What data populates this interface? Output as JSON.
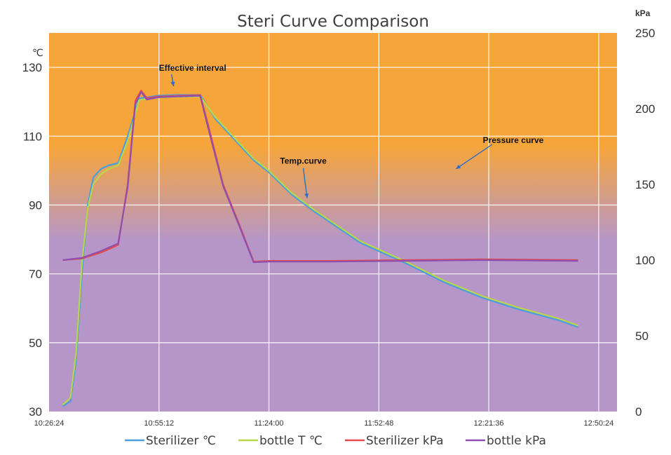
{
  "chart_data": {
    "type": "line",
    "title": "Steri Curve Comparison",
    "x": [
      "10:26:24",
      "10:55:12",
      "11:24:00",
      "11:52:48",
      "12:21:36",
      "12:50:24"
    ],
    "x_tick_labels": [
      "10:26:24",
      "10:55:12",
      "11:24:00",
      "11:52:48",
      "12:21:36",
      "12:50:24"
    ],
    "xlim": [
      "10:26:24",
      "12:55:12"
    ],
    "y_left": {
      "unit_label": "℃",
      "ylim": [
        30,
        140
      ],
      "ticks": [
        30,
        50,
        70,
        90,
        110,
        130
      ]
    },
    "y_right": {
      "unit_label": "kPa",
      "ylim": [
        0,
        250
      ],
      "ticks": [
        0,
        50,
        100,
        150,
        200,
        250
      ]
    },
    "grid": true,
    "legend_position": "bottom",
    "background": {
      "top_color": "#f6a53b",
      "bottom_color": "#b696c9"
    },
    "series": [
      {
        "name": "Sterilizer ℃",
        "axis": "left",
        "color": "#4a9ede",
        "points": [
          [
            "10:30:00",
            31.5
          ],
          [
            "10:32:00",
            33
          ],
          [
            "10:33:30",
            45
          ],
          [
            "10:35:00",
            70
          ],
          [
            "10:36:30",
            90
          ],
          [
            "10:38:00",
            98
          ],
          [
            "10:40:00",
            100.5
          ],
          [
            "10:42:00",
            101.5
          ],
          [
            "10:44:30",
            102.2
          ],
          [
            "10:47:00",
            110
          ],
          [
            "10:50:00",
            121
          ],
          [
            "10:55:00",
            121.8
          ],
          [
            "11:00:00",
            122
          ],
          [
            "11:06:00",
            122
          ],
          [
            "11:10:00",
            115
          ],
          [
            "11:15:00",
            109
          ],
          [
            "11:20:00",
            103
          ],
          [
            "11:24:00",
            99.5
          ],
          [
            "11:30:00",
            93
          ],
          [
            "11:36:00",
            88
          ],
          [
            "11:42:00",
            83.5
          ],
          [
            "11:48:00",
            79
          ],
          [
            "11:55:00",
            75.5
          ],
          [
            "12:00:00",
            73
          ],
          [
            "12:10:00",
            67.5
          ],
          [
            "12:20:00",
            63
          ],
          [
            "12:30:00",
            59.5
          ],
          [
            "12:40:00",
            56.5
          ],
          [
            "12:45:00",
            54.5
          ]
        ]
      },
      {
        "name": "bottle T ℃",
        "axis": "left",
        "color": "#b9d64a",
        "points": [
          [
            "10:30:00",
            32
          ],
          [
            "10:32:00",
            34
          ],
          [
            "10:33:30",
            47
          ],
          [
            "10:35:00",
            73
          ],
          [
            "10:36:30",
            89
          ],
          [
            "10:38:00",
            96
          ],
          [
            "10:40:00",
            99
          ],
          [
            "10:42:00",
            100.5
          ],
          [
            "10:44:30",
            101.5
          ],
          [
            "10:47:00",
            108.5
          ],
          [
            "10:50:00",
            120.5
          ],
          [
            "10:55:00",
            121.2
          ],
          [
            "11:00:00",
            121.4
          ],
          [
            "11:06:00",
            121.5
          ],
          [
            "11:10:00",
            115.5
          ],
          [
            "11:15:00",
            109.5
          ],
          [
            "11:20:00",
            103.5
          ],
          [
            "11:24:00",
            100
          ],
          [
            "11:30:00",
            93.5
          ],
          [
            "11:36:00",
            88.5
          ],
          [
            "11:42:00",
            84
          ],
          [
            "11:48:00",
            79.5
          ],
          [
            "11:55:00",
            76
          ],
          [
            "12:00:00",
            73.5
          ],
          [
            "12:10:00",
            68
          ],
          [
            "12:20:00",
            63.5
          ],
          [
            "12:30:00",
            60
          ],
          [
            "12:40:00",
            57
          ],
          [
            "12:45:00",
            55
          ]
        ]
      },
      {
        "name": "Sterilizer kPa",
        "axis": "right",
        "color": "#e24a4a",
        "points": [
          [
            "10:30:00",
            100
          ],
          [
            "10:35:00",
            101
          ],
          [
            "10:40:00",
            105
          ],
          [
            "10:44:30",
            110
          ],
          [
            "10:47:00",
            150
          ],
          [
            "10:49:00",
            205
          ],
          [
            "10:50:30",
            212
          ],
          [
            "10:52:00",
            207
          ],
          [
            "10:55:00",
            208
          ],
          [
            "11:00:00",
            208.5
          ],
          [
            "11:06:00",
            209
          ],
          [
            "11:08:00",
            190
          ],
          [
            "11:12:00",
            150
          ],
          [
            "11:16:00",
            125
          ],
          [
            "11:20:00",
            99
          ],
          [
            "11:24:00",
            99.5
          ],
          [
            "11:40:00",
            99.5
          ],
          [
            "12:00:00",
            100
          ],
          [
            "12:20:00",
            100.5
          ],
          [
            "12:45:00",
            100
          ]
        ]
      },
      {
        "name": "bottle kPa",
        "axis": "right",
        "color": "#8e4fb0",
        "points": [
          [
            "10:30:00",
            100
          ],
          [
            "10:35:00",
            101.5
          ],
          [
            "10:40:00",
            106
          ],
          [
            "10:44:30",
            111
          ],
          [
            "10:47:00",
            148
          ],
          [
            "10:49:00",
            203
          ],
          [
            "10:50:30",
            211
          ],
          [
            "10:52:00",
            206
          ],
          [
            "10:55:00",
            207.5
          ],
          [
            "11:00:00",
            208
          ],
          [
            "11:06:00",
            208.5
          ],
          [
            "11:08:00",
            188
          ],
          [
            "11:12:00",
            149
          ],
          [
            "11:16:00",
            124
          ],
          [
            "11:20:00",
            98.5
          ],
          [
            "11:24:00",
            99
          ],
          [
            "11:40:00",
            99
          ],
          [
            "12:00:00",
            99.5
          ],
          [
            "12:20:00",
            100
          ],
          [
            "12:45:00",
            99.5
          ]
        ]
      }
    ],
    "annotations": [
      {
        "text": "Effective interval",
        "points_to": [
          "10:59:00",
          124.5
        ],
        "text_at": [
          "11:04:00",
          129
        ]
      },
      {
        "text": "Temp.curve",
        "points_to": [
          "11:34:00",
          92
        ],
        "text_at": [
          "11:33:00",
          102
        ]
      },
      {
        "text": "Pressure curve",
        "points_to": [
          "12:13:00",
          100.5
        ],
        "text_at": [
          "12:28:00",
          108
        ]
      }
    ]
  }
}
